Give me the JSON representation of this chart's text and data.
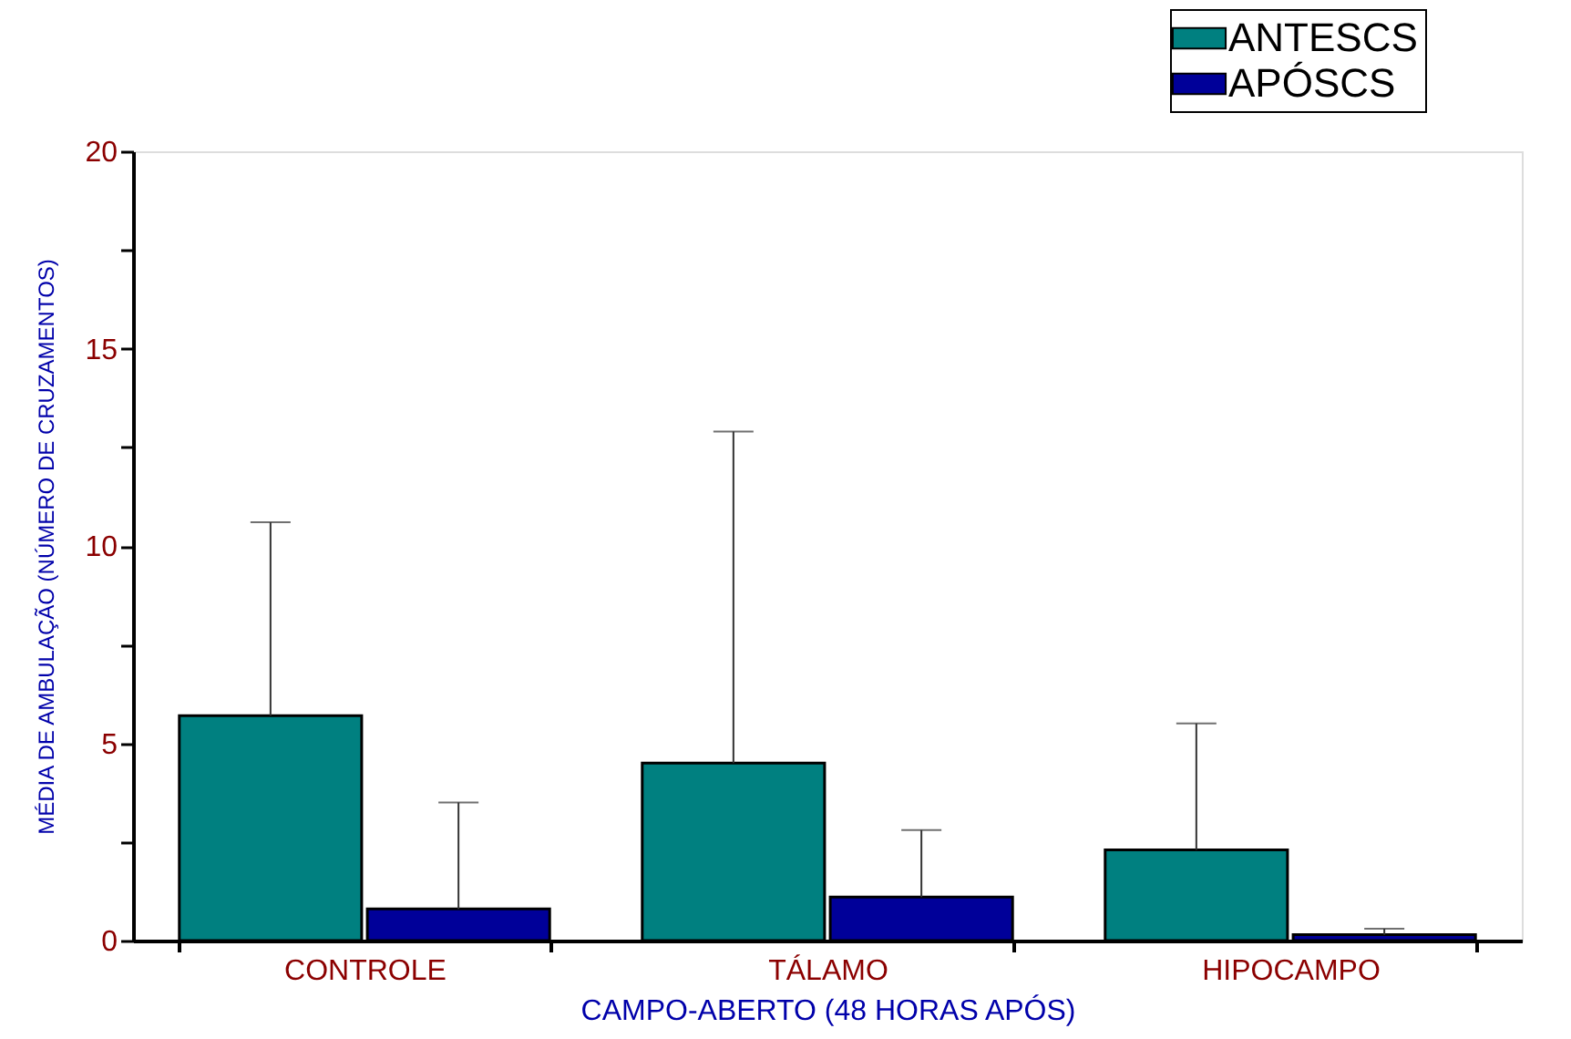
{
  "chart_data": {
    "type": "bar",
    "xlabel": "CAMPO-ABERTO (48 HORAS APÓS)",
    "ylabel": "MÉDIA DE AMBULAÇÃO (NÚMERO DE CRUZAMENTOS)",
    "categories": [
      "CONTROLE",
      "TÁLAMO",
      "HIPOCAMPO"
    ],
    "series": [
      {
        "name": "ANTESCS",
        "color": "#008080",
        "values": [
          5.7,
          4.5,
          2.3
        ],
        "errors": [
          [
            5.7,
            10.6
          ],
          [
            4.5,
            12.9
          ],
          [
            2.3,
            5.5
          ]
        ]
      },
      {
        "name": "APÓSCS",
        "color": "#000099",
        "values": [
          0.8,
          1.1,
          0.15
        ],
        "errors": [
          [
            0.8,
            3.5
          ],
          [
            1.1,
            2.8
          ],
          [
            0.15,
            0.3
          ]
        ]
      }
    ],
    "ylim": [
      0,
      20
    ],
    "yticks": [
      0,
      {
        "value": 2.5,
        "label": null
      },
      5,
      {
        "value": 7.5,
        "label": null
      },
      10,
      {
        "value": 12.5,
        "label": null
      },
      15,
      {
        "value": 17.5,
        "label": null
      },
      20
    ],
    "grid": false,
    "legend": "top right"
  }
}
